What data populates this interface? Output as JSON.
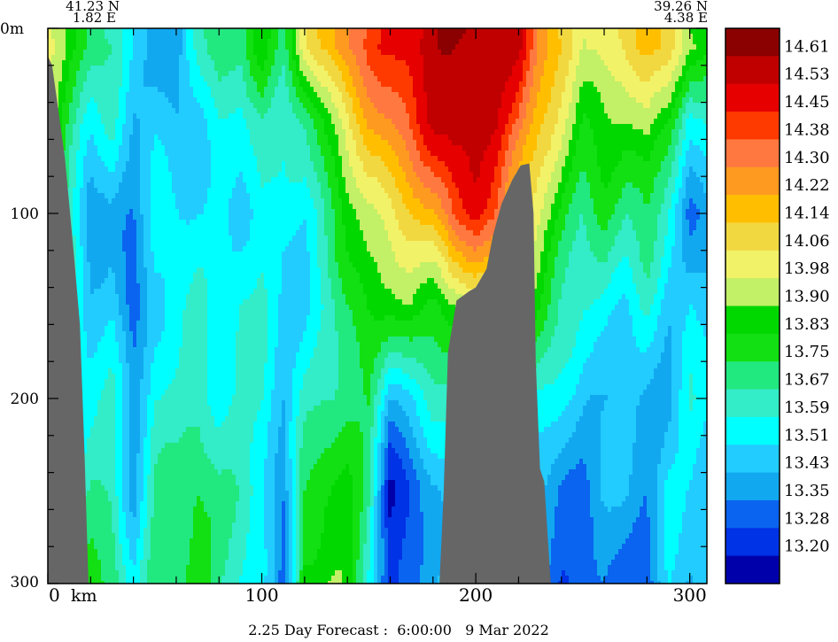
{
  "chart_data": {
    "type": "heatmap",
    "title": "",
    "xlabel": "km",
    "ylabel": "",
    "xlim": [
      0,
      308
    ],
    "ylim": [
      300,
      0
    ],
    "x_ticks": [
      {
        "value": 0,
        "label": "0"
      },
      {
        "value": 100,
        "label": "100"
      },
      {
        "value": 200,
        "label": "200"
      },
      {
        "value": 300,
        "label": "300"
      }
    ],
    "y_ticks": [
      {
        "value": 0,
        "label": "0m"
      },
      {
        "value": 100,
        "label": "100"
      },
      {
        "value": 200,
        "label": "200"
      },
      {
        "value": 300,
        "label": "300"
      }
    ],
    "start_point": {
      "lat": "41.23 N",
      "lon": "1.82 E"
    },
    "end_point": {
      "lat": "39.26 N",
      "lon": "4.38 E"
    },
    "forecast_label": "2.25 Day Forecast :  6:00:00   9 Mar 2022",
    "colorbar": {
      "labels": [
        "14.61",
        "14.53",
        "14.45",
        "14.38",
        "14.30",
        "14.22",
        "14.14",
        "14.06",
        "13.98",
        "13.90",
        "13.83",
        "13.75",
        "13.67",
        "13.59",
        "13.51",
        "13.43",
        "13.35",
        "13.28",
        "13.20"
      ],
      "colors": [
        "#8b0000",
        "#c00000",
        "#e60000",
        "#ff3a00",
        "#ff7840",
        "#ff9a20",
        "#ffbf00",
        "#f2d840",
        "#f2f268",
        "#c2f066",
        "#00d800",
        "#12e012",
        "#22e880",
        "#33ecc8",
        "#00ffff",
        "#22ccff",
        "#12a8f0",
        "#0a64f0",
        "#0032e6",
        "#0000aa"
      ]
    },
    "seabed_color": "#666666",
    "profile_columns": [
      {
        "x": 0,
        "values": [
          13.98,
          13.98,
          13.9,
          13.83,
          13.75,
          13.75,
          13.67
        ]
      },
      {
        "x": 10,
        "values": [
          13.83,
          13.75,
          13.67,
          13.59,
          13.51,
          13.59,
          13.67
        ]
      },
      {
        "x": 20,
        "values": [
          13.75,
          13.51,
          13.35,
          13.43,
          13.59,
          13.67,
          13.75
        ]
      },
      {
        "x": 30,
        "values": [
          13.67,
          13.59,
          13.43,
          13.51,
          13.59,
          13.67,
          13.75
        ]
      },
      {
        "x": 40,
        "values": [
          13.51,
          13.43,
          13.35,
          13.28,
          13.35,
          13.43,
          13.51
        ]
      },
      {
        "x": 50,
        "values": [
          13.43,
          13.51,
          13.51,
          13.51,
          13.59,
          13.67,
          13.75
        ]
      },
      {
        "x": 60,
        "values": [
          13.35,
          13.43,
          13.51,
          13.59,
          13.59,
          13.67,
          13.75
        ]
      },
      {
        "x": 70,
        "values": [
          13.59,
          13.51,
          13.51,
          13.59,
          13.67,
          13.75,
          13.83
        ]
      },
      {
        "x": 80,
        "values": [
          13.75,
          13.59,
          13.51,
          13.51,
          13.59,
          13.67,
          13.67
        ]
      },
      {
        "x": 90,
        "values": [
          13.67,
          13.51,
          13.51,
          13.59,
          13.59,
          13.67,
          13.59
        ]
      },
      {
        "x": 100,
        "values": [
          13.9,
          13.67,
          13.59,
          13.59,
          13.59,
          13.59,
          13.51
        ]
      },
      {
        "x": 110,
        "values": [
          13.75,
          13.59,
          13.51,
          13.51,
          13.43,
          13.35,
          13.28
        ]
      },
      {
        "x": 120,
        "values": [
          14.06,
          13.67,
          13.51,
          13.51,
          13.59,
          13.75,
          13.9
        ]
      },
      {
        "x": 130,
        "values": [
          14.14,
          13.9,
          13.67,
          13.59,
          13.67,
          13.83,
          13.9
        ]
      },
      {
        "x": 140,
        "values": [
          14.3,
          14.06,
          13.83,
          13.75,
          13.75,
          13.83,
          13.9
        ]
      },
      {
        "x": 150,
        "values": [
          14.38,
          14.22,
          13.98,
          13.83,
          13.75,
          13.67,
          13.59
        ]
      },
      {
        "x": 160,
        "values": [
          14.45,
          14.3,
          14.06,
          13.83,
          13.43,
          13.2,
          13.2
        ]
      },
      {
        "x": 170,
        "values": [
          14.53,
          14.38,
          14.14,
          13.9,
          13.51,
          13.28,
          13.28
        ]
      },
      {
        "x": 180,
        "values": [
          14.61,
          14.53,
          14.22,
          13.83,
          13.59,
          13.43,
          13.43
        ]
      },
      {
        "x": 190,
        "values": [
          14.61,
          14.61,
          14.38,
          13.9,
          13.59,
          13.51,
          13.51
        ]
      },
      {
        "x": 200,
        "values": [
          14.61,
          14.61,
          14.45,
          13.98,
          13.67,
          13.51,
          13.43
        ]
      },
      {
        "x": 210,
        "values": [
          14.53,
          14.53,
          14.38,
          13.98,
          13.75,
          13.59,
          13.51
        ]
      },
      {
        "x": 220,
        "values": [
          14.53,
          14.38,
          14.14,
          13.9,
          13.67,
          13.51,
          13.43
        ]
      },
      {
        "x": 230,
        "values": [
          14.3,
          14.14,
          13.98,
          13.83,
          13.59,
          13.43,
          13.35
        ]
      },
      {
        "x": 240,
        "values": [
          14.14,
          13.98,
          13.83,
          13.67,
          13.51,
          13.35,
          13.28
        ]
      },
      {
        "x": 250,
        "values": [
          13.98,
          13.83,
          13.67,
          13.59,
          13.43,
          13.35,
          13.28
        ]
      },
      {
        "x": 260,
        "values": [
          14.06,
          13.9,
          13.75,
          13.59,
          13.43,
          13.43,
          13.35
        ]
      },
      {
        "x": 270,
        "values": [
          14.06,
          13.9,
          13.67,
          13.51,
          13.43,
          13.43,
          13.35
        ]
      },
      {
        "x": 280,
        "values": [
          14.14,
          13.98,
          13.75,
          13.59,
          13.43,
          13.35,
          13.28
        ]
      },
      {
        "x": 290,
        "values": [
          14.14,
          13.83,
          13.59,
          13.43,
          13.43,
          13.51,
          13.51
        ]
      },
      {
        "x": 300,
        "values": [
          13.9,
          13.51,
          13.35,
          13.51,
          13.59,
          13.51,
          13.43
        ]
      },
      {
        "x": 308,
        "values": [
          13.83,
          13.59,
          13.43,
          13.43,
          13.51,
          13.51,
          13.43
        ]
      }
    ],
    "profile_depths": [
      10,
      50,
      100,
      150,
      200,
      250,
      300
    ],
    "seabed": [
      {
        "x": 0,
        "depth": 15
      },
      {
        "x": 2,
        "depth": 20
      },
      {
        "x": 5,
        "depth": 45
      },
      {
        "x": 8,
        "depth": 70
      },
      {
        "x": 12,
        "depth": 120
      },
      {
        "x": 15,
        "depth": 160
      },
      {
        "x": 17,
        "depth": 225
      },
      {
        "x": 19,
        "depth": 300
      },
      {
        "x": 183,
        "depth": 300
      },
      {
        "x": 185,
        "depth": 250
      },
      {
        "x": 187,
        "depth": 175
      },
      {
        "x": 191,
        "depth": 147
      },
      {
        "x": 197,
        "depth": 142
      },
      {
        "x": 200,
        "depth": 140
      },
      {
        "x": 205,
        "depth": 130
      },
      {
        "x": 208,
        "depth": 112
      },
      {
        "x": 212,
        "depth": 95
      },
      {
        "x": 217,
        "depth": 82
      },
      {
        "x": 221,
        "depth": 74
      },
      {
        "x": 225,
        "depth": 73
      },
      {
        "x": 227,
        "depth": 100
      },
      {
        "x": 228,
        "depth": 180
      },
      {
        "x": 230,
        "depth": 238
      },
      {
        "x": 232,
        "depth": 245
      },
      {
        "x": 235,
        "depth": 300
      }
    ]
  }
}
